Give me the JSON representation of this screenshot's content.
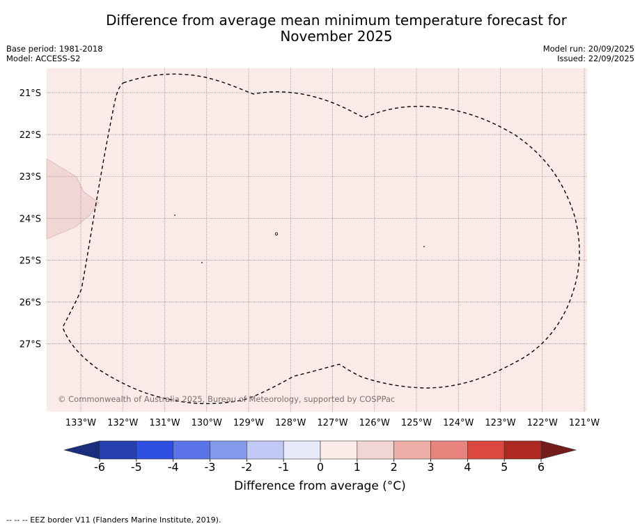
{
  "title": {
    "line1": "Difference from average mean minimum temperature forecast for",
    "line2": "November 2025"
  },
  "info": {
    "base_period": "Base period: 1981-2018",
    "model": "Model: ACCESS-S2",
    "model_run": "Model run: 20/09/2025",
    "issued": "Issued: 22/09/2025"
  },
  "map": {
    "lat_labels": [
      "21°S",
      "22°S",
      "23°S",
      "24°S",
      "25°S",
      "26°S",
      "27°S"
    ],
    "lon_labels": [
      "133°W",
      "132°W",
      "131°W",
      "130°W",
      "129°W",
      "128°W",
      "127°W",
      "126°W",
      "125°W",
      "124°W",
      "123°W",
      "122°W",
      "121°W"
    ],
    "background_color": "#fbebe8",
    "patch_color": "#f1d6d3",
    "copyright": "© Commonwealth of Australia 2025, Bureau of Meteorology, supported by COSPPac"
  },
  "colorbar": {
    "label": "Difference from average (°C)",
    "ticks": [
      "-6",
      "-5",
      "-4",
      "-3",
      "-2",
      "-1",
      "0",
      "1",
      "2",
      "3",
      "4",
      "5",
      "6"
    ],
    "under_color": "#1b2e7d",
    "over_color": "#741c1b",
    "colors": [
      "#2640b2",
      "#2d50e2",
      "#5a74e8",
      "#8399ec",
      "#c1c8f3",
      "#e7eafb",
      "#fcece9",
      "#f2d6d3",
      "#edaea8",
      "#e8847e",
      "#da4841",
      "#ae2922"
    ]
  },
  "footnote": "--  --  -- EEZ border V11 (Flanders Marine Institute, 2019)."
}
